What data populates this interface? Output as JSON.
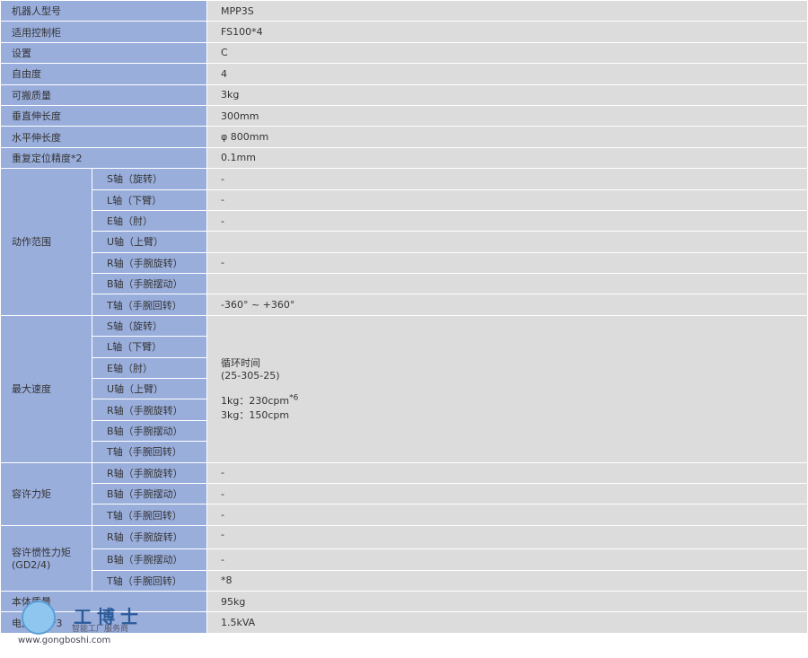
{
  "rows": [
    {
      "label": "机器人型号",
      "value": "MPP3S"
    },
    {
      "label": "适用控制柜",
      "value": "FS100*4"
    },
    {
      "label": "设置",
      "value": "C"
    },
    {
      "label": "自由度",
      "value": "4"
    },
    {
      "label": "可搬质量",
      "value": "3kg"
    },
    {
      "label": "垂直伸长度",
      "value": "300mm"
    },
    {
      "label": "水平伸长度",
      "value": "φ 800mm"
    },
    {
      "label": "重复定位精度*2",
      "value": "0.1mm"
    }
  ],
  "motion": {
    "label": "动作范围",
    "axes": [
      {
        "axis": "S轴（旋转）",
        "value": "-"
      },
      {
        "axis": "L轴（下臂）",
        "value": "-"
      },
      {
        "axis": "E轴（肘）",
        "value": "-"
      },
      {
        "axis": "U轴（上臂）",
        "value": ""
      },
      {
        "axis": "R轴（手腕旋转）",
        "value": "-"
      },
      {
        "axis": "B轴（手腕摆动）",
        "value": ""
      },
      {
        "axis": "T轴（手腕回转）",
        "value": "-360° ~ +360°"
      }
    ]
  },
  "speed": {
    "label": "最大速度",
    "axes": [
      "S轴（旋转）",
      "L轴（下臂）",
      "E轴（肘）",
      "U轴（上臂）",
      "R轴（手腕旋转）",
      "B轴（手腕摆动）",
      "T轴（手腕回转）"
    ],
    "line1": "循环时间",
    "line2": "(25-305-25)",
    "line3": "1kg：230cpm",
    "line3_sup": "*6",
    "line4": "3kg：150cpm"
  },
  "torque": {
    "label": "容许力矩",
    "axes": [
      {
        "axis": "R轴（手腕旋转）",
        "value": "-"
      },
      {
        "axis": "B轴（手腕摆动）",
        "value": "-"
      },
      {
        "axis": "T轴（手腕回转）",
        "value": "-"
      }
    ]
  },
  "inertia": {
    "label": "容许惯性力矩",
    "label2": "(GD2/4)",
    "axes": [
      {
        "axis": "R轴（手腕旋转）",
        "value": "-"
      },
      {
        "axis": "B轴（手腕摆动）",
        "value": "-"
      },
      {
        "axis": "T轴（手腕回转）",
        "value": "*8"
      }
    ]
  },
  "tail": [
    {
      "label": "本体质量",
      "value": "95kg"
    },
    {
      "label": "电源容量*3",
      "value": "1.5kVA"
    }
  ],
  "watermark": {
    "brand": "工博士",
    "slogan": "智能工厂服务商",
    "site": "www.gongboshi.com"
  },
  "colors": {
    "label_bg": "#9aaedc",
    "value_bg": "#dcdcdc"
  }
}
